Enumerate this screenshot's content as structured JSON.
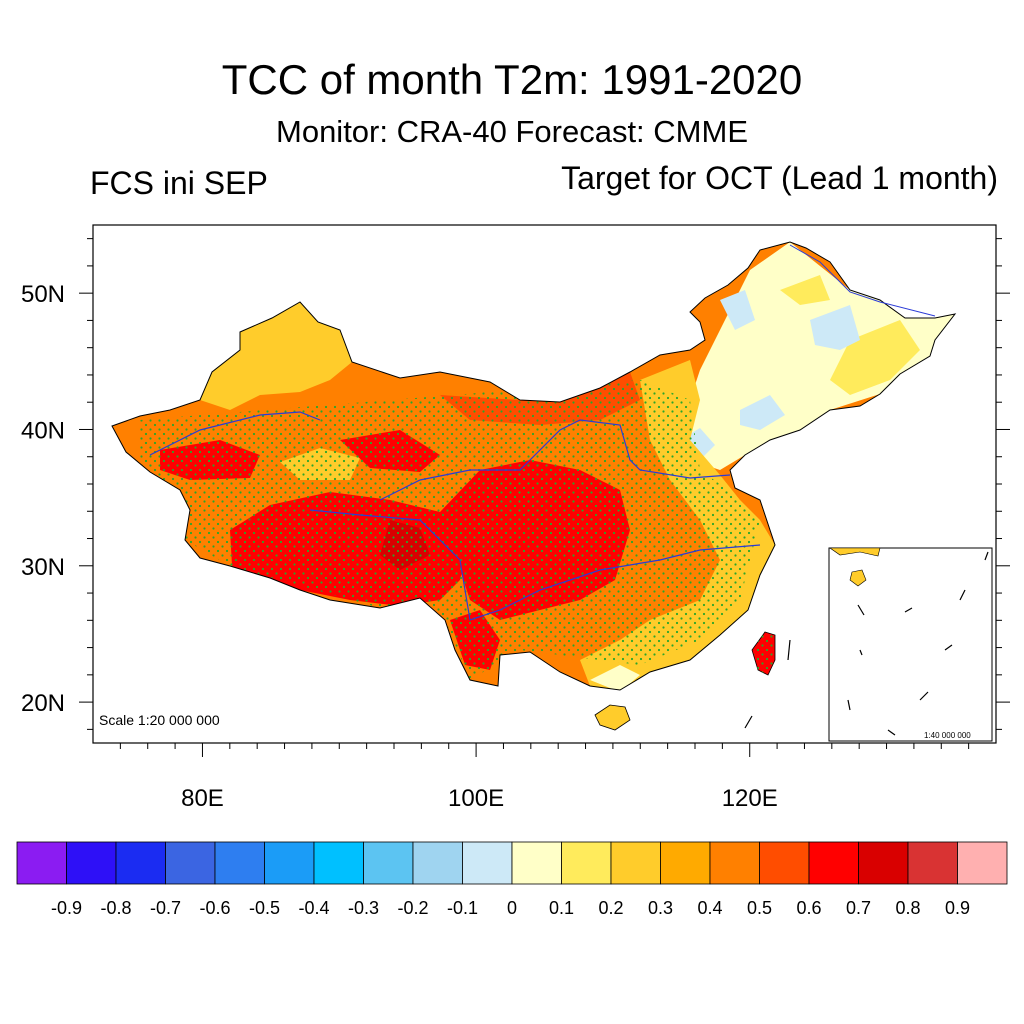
{
  "title": "TCC of month T2m: 1991-2020",
  "subtitle": "Monitor: CRA-40   Forecast: CMME",
  "left_label": "FCS ini SEP",
  "right_label": "Target for OCT (Lead 1 month)",
  "map": {
    "lon_range": [
      72,
      138
    ],
    "lat_range": [
      17,
      55
    ],
    "lat_ticks": [
      {
        "label": "50N",
        "lat": 50
      },
      {
        "label": "40N",
        "lat": 40
      },
      {
        "label": "30N",
        "lat": 30
      },
      {
        "label": "20N",
        "lat": 20
      }
    ],
    "lon_ticks": [
      {
        "label": "80E",
        "lon": 80
      },
      {
        "label": "100E",
        "lon": 100
      },
      {
        "label": "120E",
        "lon": 120
      }
    ],
    "scale_text": "Scale 1:20 000 000",
    "inset_scale_text": "1:40 000 000",
    "significance_stipple_color": "#2aa52a",
    "colors": {
      "background_ocean": "#ffffff",
      "river": "#2b3bd6",
      "border": "#000000"
    }
  },
  "colorbar": {
    "colors": [
      "#8b1cf2",
      "#2e10f7",
      "#1b2cf2",
      "#3b65e2",
      "#2e7ef0",
      "#1b9cf7",
      "#00c0ff",
      "#5cc4f2",
      "#9fd4f0",
      "#cde9f7",
      "#ffffc8",
      "#ffeb5c",
      "#ffcc2b",
      "#ffaa00",
      "#ff8000",
      "#ff4d00",
      "#ff0000",
      "#d90000",
      "#d93333",
      "#ffb0b0"
    ],
    "labels": [
      "-0.9",
      "-0.8",
      "-0.7",
      "-0.6",
      "-0.5",
      "-0.4",
      "-0.3",
      "-0.2",
      "-0.1",
      "0",
      "0.1",
      "0.2",
      "0.3",
      "0.4",
      "0.5",
      "0.6",
      "0.7",
      "0.8",
      "0.9"
    ]
  }
}
